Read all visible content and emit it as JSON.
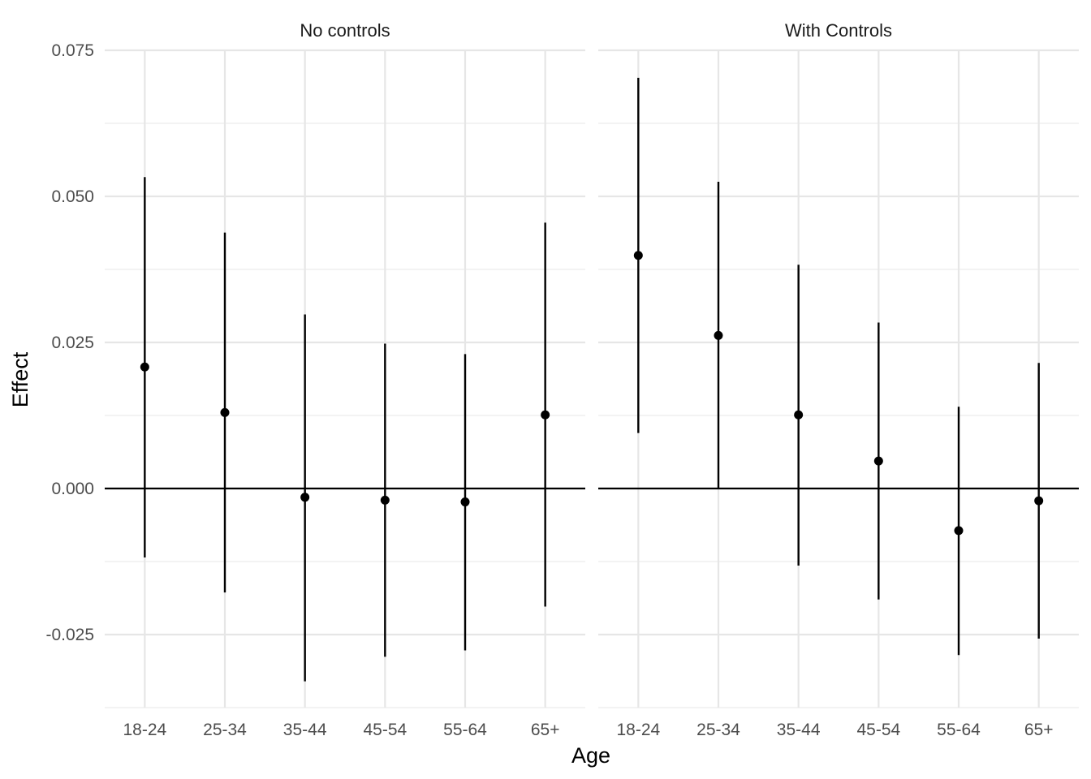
{
  "chart_data": {
    "type": "scatter",
    "subtype": "point-range / error bars, faceted",
    "xlabel": "Age",
    "ylabel": "Effect",
    "ylim": [
      -0.0375,
      0.075
    ],
    "y_ticks": [
      "-0.025",
      "0.000",
      "0.025",
      "0.050",
      "0.075"
    ],
    "y_tick_values": [
      -0.025,
      0.0,
      0.025,
      0.05,
      0.075
    ],
    "categories": [
      "18-24",
      "25-34",
      "35-44",
      "45-54",
      "55-64",
      "65+"
    ],
    "grid": true,
    "reference_line_y": 0,
    "colors": {
      "marks": "#000000",
      "grid": "#e6e6e6"
    },
    "panels": [
      {
        "title": "No controls",
        "estimate": [
          0.0208,
          0.013,
          -0.0015,
          -0.002,
          -0.0023,
          0.0126
        ],
        "lower": [
          -0.0118,
          -0.0178,
          -0.033,
          -0.0288,
          -0.0277,
          -0.0202
        ],
        "upper": [
          0.0533,
          0.0438,
          0.0298,
          0.0248,
          0.023,
          0.0455
        ]
      },
      {
        "title": "With Controls",
        "estimate": [
          0.0399,
          0.0262,
          0.0126,
          0.0047,
          -0.0072,
          -0.0021
        ],
        "lower": [
          0.0095,
          0.0001,
          -0.0132,
          -0.019,
          -0.0285,
          -0.0257
        ],
        "upper": [
          0.0703,
          0.0525,
          0.0383,
          0.0284,
          0.014,
          0.0215
        ]
      }
    ]
  }
}
